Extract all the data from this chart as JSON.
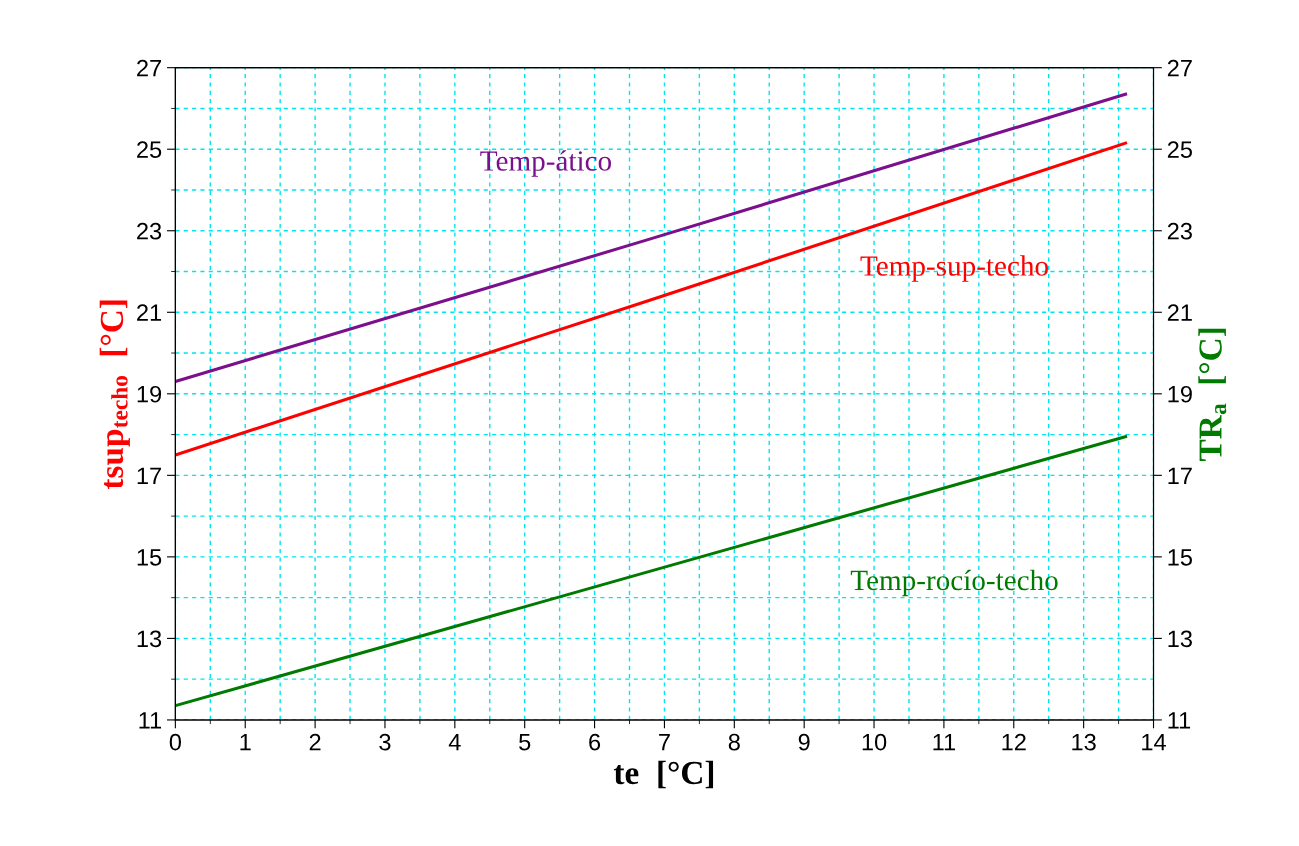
{
  "chart_data": {
    "type": "line",
    "xlabel": "te  [°C]",
    "ylabel": "tsup$_{techo}$  [°C]",
    "y2label": "TR$_{a}$  [°C]",
    "xlim": [
      0,
      14
    ],
    "xticks": [
      0,
      1,
      2,
      3,
      4,
      5,
      6,
      7,
      8,
      9,
      10,
      11,
      12,
      13,
      14
    ],
    "ylim": [
      11,
      27
    ],
    "yticks": [
      11,
      13,
      15,
      17,
      19,
      21,
      23,
      25,
      27
    ],
    "y2lim": [
      11,
      27
    ],
    "y2ticks": [
      11,
      13,
      15,
      17,
      19,
      21,
      23,
      25,
      27
    ],
    "grid": true,
    "legend": false,
    "marker": "none",
    "line_style": "solid",
    "series": [
      {
        "name": "Temp-ático",
        "color": "#7b0f8c",
        "x": [
          0,
          6.8,
          13.6
        ],
        "values": [
          19.3,
          22.8,
          26.35
        ]
      },
      {
        "name": "Temp-sup-techo",
        "color": "#ff0000",
        "x": [
          0,
          6.8,
          13.6
        ],
        "values": [
          17.5,
          21.3,
          25.15
        ]
      },
      {
        "name": "Temp-rocío-techo",
        "color": "#007a00",
        "axis": "y2",
        "x": [
          0,
          6.8,
          13.6
        ],
        "values": [
          11.35,
          14.65,
          17.95
        ]
      }
    ]
  }
}
